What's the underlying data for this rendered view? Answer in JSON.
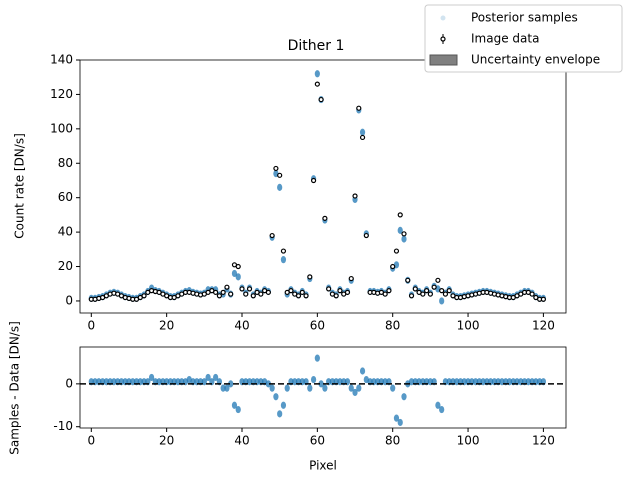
{
  "chart_data": [
    {
      "type": "scatter",
      "title": "Dither 1",
      "ylabel": "Count rate [DN/s]",
      "x": [
        0,
        1,
        2,
        3,
        4,
        5,
        6,
        7,
        8,
        9,
        10,
        11,
        12,
        13,
        14,
        15,
        16,
        17,
        18,
        19,
        20,
        21,
        22,
        23,
        24,
        25,
        26,
        27,
        28,
        29,
        30,
        31,
        32,
        33,
        34,
        35,
        36,
        37,
        38,
        39,
        40,
        41,
        42,
        43,
        44,
        45,
        46,
        47,
        48,
        49,
        50,
        51,
        52,
        53,
        54,
        55,
        56,
        57,
        58,
        59,
        60,
        61,
        62,
        63,
        64,
        65,
        66,
        67,
        68,
        69,
        70,
        71,
        72,
        73,
        74,
        75,
        76,
        77,
        78,
        79,
        80,
        81,
        82,
        83,
        84,
        85,
        86,
        87,
        88,
        89,
        90,
        91,
        92,
        93,
        94,
        95,
        96,
        97,
        98,
        99,
        100,
        101,
        102,
        103,
        104,
        105,
        106,
        107,
        108,
        109,
        110,
        111,
        112,
        113,
        114,
        115,
        116,
        117,
        118,
        119,
        120
      ],
      "series": [
        {
          "name": "Posterior samples",
          "color": "#1f77b4",
          "style": "cloud",
          "values": [
            1.5,
            1.5,
            2,
            2.5,
            3.5,
            4.5,
            5,
            4.5,
            3.5,
            2.5,
            2,
            1.5,
            1.5,
            2.5,
            3.5,
            5.5,
            7.5,
            6,
            5.5,
            4.5,
            3.5,
            2.5,
            2.5,
            3.5,
            4.5,
            5.5,
            6,
            5,
            4.5,
            4,
            4.5,
            6.5,
            6.5,
            6.5,
            3.5,
            4,
            7,
            4,
            16,
            14,
            7.5,
            4.5,
            7.5,
            3.5,
            5.5,
            4.5,
            6.5,
            5.5,
            37,
            74,
            66,
            24,
            4,
            6.5,
            4.5,
            3.5,
            5.5,
            3.5,
            13,
            71,
            132,
            117,
            47,
            7.5,
            4.5,
            3.5,
            6.5,
            4.5,
            5.5,
            12,
            59,
            111,
            98,
            39,
            5.5,
            5.5,
            5,
            5.5,
            4.5,
            6.5,
            19,
            21,
            41,
            36,
            12,
            3.5,
            7.5,
            5.5,
            4.5,
            6.5,
            4.5,
            8.5,
            7,
            0,
            4.5,
            6.5,
            3.5,
            2.5,
            2.5,
            3,
            3.5,
            4,
            4.5,
            5,
            5.5,
            5.5,
            5,
            4.5,
            4,
            3.5,
            3,
            2.5,
            2.5,
            3.5,
            4.5,
            5.5,
            5.5,
            4.5,
            2.5,
            1.5,
            1.5
          ]
        },
        {
          "name": "Image data",
          "color": "#000000",
          "style": "open",
          "values": [
            1,
            1,
            1.5,
            2,
            3,
            4,
            4.5,
            4,
            3,
            2,
            1.5,
            1,
            1,
            2,
            3,
            5,
            6,
            5.5,
            5,
            4,
            3,
            2,
            2,
            3,
            4,
            5,
            5,
            4.5,
            4,
            3.5,
            4,
            5,
            6,
            5,
            3,
            5,
            8,
            4,
            21,
            20,
            7,
            4,
            7,
            3,
            5,
            4,
            6,
            5,
            38,
            77,
            73,
            29,
            5,
            6,
            4,
            3,
            5,
            3,
            14,
            70,
            126,
            117,
            48,
            7,
            4,
            3,
            6,
            4,
            5,
            13,
            61,
            112,
            95,
            38,
            5,
            5,
            4.5,
            5,
            4,
            6,
            20,
            29,
            50,
            39,
            12,
            3,
            7,
            5,
            4,
            6,
            4,
            8,
            12,
            6,
            4,
            6,
            3,
            2,
            2,
            2.5,
            3,
            3.5,
            4,
            4.5,
            5,
            5,
            4.5,
            4,
            3.5,
            3,
            2.5,
            2,
            2,
            3,
            4,
            5,
            5,
            4,
            2,
            1,
            1
          ]
        }
      ],
      "envelope": {
        "name": "Uncertainty envelope",
        "color": "#808080"
      },
      "xlim": [
        -3,
        126
      ],
      "ylim": [
        -7,
        140
      ],
      "xticks": [
        0,
        20,
        40,
        60,
        80,
        100,
        120
      ],
      "yticks": [
        0,
        20,
        40,
        60,
        80,
        100,
        120,
        140
      ]
    },
    {
      "type": "scatter",
      "xlabel": "Pixel",
      "ylabel": "Samples - Data [DN/s]",
      "x": [
        0,
        1,
        2,
        3,
        4,
        5,
        6,
        7,
        8,
        9,
        10,
        11,
        12,
        13,
        14,
        15,
        16,
        17,
        18,
        19,
        20,
        21,
        22,
        23,
        24,
        25,
        26,
        27,
        28,
        29,
        30,
        31,
        32,
        33,
        34,
        35,
        36,
        37,
        38,
        39,
        40,
        41,
        42,
        43,
        44,
        45,
        46,
        47,
        48,
        49,
        50,
        51,
        52,
        53,
        54,
        55,
        56,
        57,
        58,
        59,
        60,
        61,
        62,
        63,
        64,
        65,
        66,
        67,
        68,
        69,
        70,
        71,
        72,
        73,
        74,
        75,
        76,
        77,
        78,
        79,
        80,
        81,
        82,
        83,
        84,
        85,
        86,
        87,
        88,
        89,
        90,
        91,
        92,
        93,
        94,
        95,
        96,
        97,
        98,
        99,
        100,
        101,
        102,
        103,
        104,
        105,
        106,
        107,
        108,
        109,
        110,
        111,
        112,
        113,
        114,
        115,
        116,
        117,
        118,
        119,
        120
      ],
      "series": [
        {
          "color": "#1f77b4",
          "style": "cloud",
          "values": [
            0.5,
            0.5,
            0.5,
            0.5,
            0.5,
            0.5,
            0.5,
            0.5,
            0.5,
            0.5,
            0.5,
            0.5,
            0.5,
            0.5,
            0.5,
            0.5,
            1.5,
            0.5,
            0.5,
            0.5,
            0.5,
            0.5,
            0.5,
            0.5,
            0.5,
            0.5,
            1,
            0.5,
            0.5,
            0.5,
            0.5,
            1.5,
            0.5,
            1.5,
            0.5,
            -1,
            -1,
            0,
            -5,
            -6,
            0.5,
            0.5,
            0.5,
            0.5,
            0.5,
            0.5,
            0.5,
            0,
            -1,
            -3,
            -7,
            -5,
            -1,
            0.5,
            0.5,
            0.5,
            0.5,
            0.5,
            -1,
            1,
            6,
            0,
            -1,
            0.5,
            0.5,
            0.5,
            0.5,
            0.5,
            0.5,
            -1,
            -2,
            -1,
            3,
            1,
            0.5,
            0.5,
            0.5,
            0.5,
            0.5,
            0.5,
            -1,
            -8,
            -9,
            -3,
            0,
            0.5,
            0.5,
            0.5,
            0.5,
            0.5,
            0.5,
            0.5,
            -5,
            -6,
            0.5,
            0.5,
            0.5,
            0.5,
            0.5,
            0.5,
            0.5,
            0.5,
            0.5,
            0.5,
            0.5,
            0.5,
            0.5,
            0.5,
            0.5,
            0.5,
            0.5,
            0.5,
            0.5,
            0.5,
            0.5,
            0.5,
            0.5,
            0.5,
            0.5,
            0.5,
            0.5
          ]
        }
      ],
      "hline": 0,
      "xlim": [
        -3,
        126
      ],
      "ylim": [
        -10.3,
        8.6
      ],
      "xticks": [
        0,
        20,
        40,
        60,
        80,
        100,
        120
      ],
      "yticks": [
        -10,
        0
      ]
    }
  ]
}
